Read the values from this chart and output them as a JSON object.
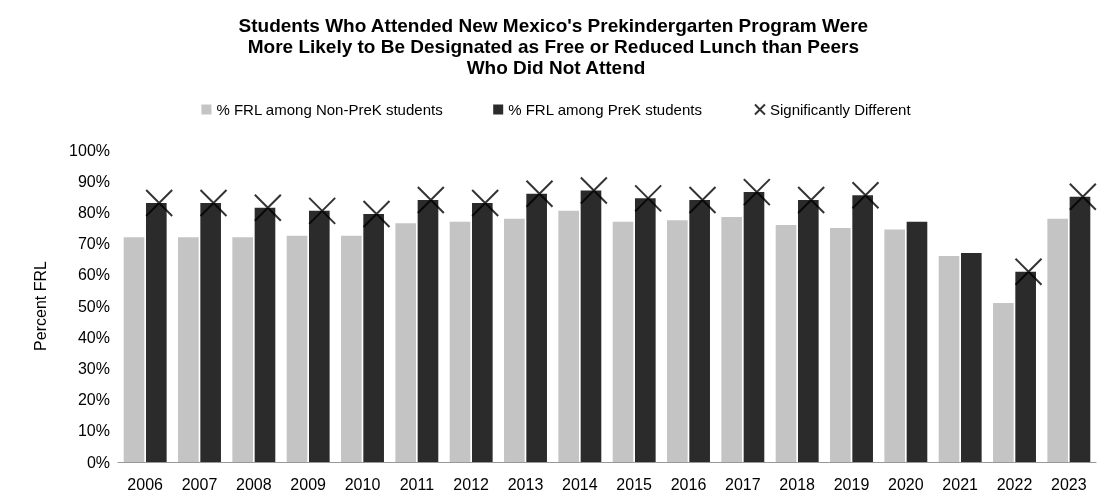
{
  "chart_data": {
    "type": "bar",
    "title": "Students Who Attended New Mexico's Prekindergarten Program Were More Likely to Be Designated as Free or Reduced Lunch than Peers Who Did Not Attend",
    "ylabel": "Percent FRL",
    "categories": [
      "2006",
      "2007",
      "2008",
      "2009",
      "2010",
      "2011",
      "2012",
      "2013",
      "2014",
      "2015",
      "2016",
      "2017",
      "2018",
      "2019",
      "2020",
      "2021",
      "2022",
      "2023"
    ],
    "series": [
      {
        "name": "% FRL among Non-PreK students",
        "color": "#c4c4c4",
        "values": [
          72,
          72,
          72,
          72.5,
          72.5,
          76.5,
          77,
          78,
          80.5,
          77,
          77.5,
          78.5,
          76,
          75,
          74.5,
          66,
          51,
          78
        ]
      },
      {
        "name": "% FRL among PreK students",
        "color": "#2b2b2b",
        "values": [
          83,
          83,
          81.5,
          80.5,
          79.5,
          84,
          83,
          86,
          87,
          84.5,
          84,
          86.5,
          84,
          85.5,
          77,
          67,
          61,
          85
        ]
      },
      {
        "name": "Significantly Different",
        "type": "scatter",
        "marker": "cross",
        "color": "#000000",
        "values": [
          83,
          83,
          81.5,
          80.5,
          79.5,
          84,
          83,
          86,
          87,
          84.5,
          84,
          86.5,
          84,
          85.5,
          null,
          null,
          61,
          85
        ]
      }
    ],
    "ylim": [
      0,
      100
    ],
    "yticks": [
      {
        "value": 0,
        "label": "0%"
      },
      {
        "value": 10,
        "label": "10%"
      },
      {
        "value": 20,
        "label": "20%"
      },
      {
        "value": 30,
        "label": "30%"
      },
      {
        "value": 40,
        "label": "40%"
      },
      {
        "value": 50,
        "label": "50%"
      },
      {
        "value": 60,
        "label": "60%"
      },
      {
        "value": 70,
        "label": "70%"
      },
      {
        "value": 80,
        "label": "80%"
      },
      {
        "value": 90,
        "label": "90%"
      },
      {
        "value": 100,
        "label": "100%"
      }
    ],
    "grid": false,
    "legend": "top"
  }
}
